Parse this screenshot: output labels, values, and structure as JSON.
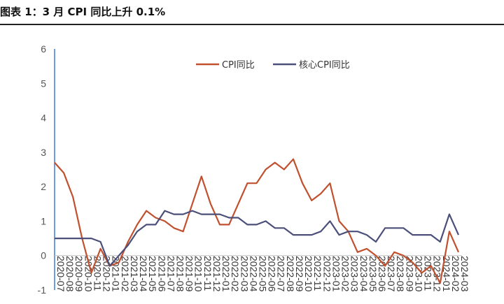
{
  "header": {
    "title": "图表 1：3 月 CPI 同比上升 0.1%"
  },
  "colors": {
    "cpi": "#c1502e",
    "core": "#4b4f79",
    "axis": "#3a7fd5"
  },
  "chart_data": {
    "type": "line",
    "title": "图表 1：3 月 CPI 同比上升 0.1%",
    "xlabel": "",
    "ylabel": "",
    "ylim": [
      -1,
      6
    ],
    "yticks": [
      -1,
      0,
      1,
      2,
      3,
      4,
      5,
      6
    ],
    "grid": false,
    "legend_position": "top-right",
    "x": [
      "2020-07",
      "2020-08",
      "2020-09",
      "2020-10",
      "2020-11",
      "2020-12",
      "2021-01",
      "2021-02",
      "2021-03",
      "2021-04",
      "2021-05",
      "2021-06",
      "2021-07",
      "2021-08",
      "2021-09",
      "2021-10",
      "2021-11",
      "2021-12",
      "2022-01",
      "2022-02",
      "2022-03",
      "2022-04",
      "2022-05",
      "2022-06",
      "2022-07",
      "2022-08",
      "2022-09",
      "2022-10",
      "2022-11",
      "2022-12",
      "2023-01",
      "2023-02",
      "2023-03",
      "2023-04",
      "2023-05",
      "2023-06",
      "2023-07",
      "2023-08",
      "2023-09",
      "2023-10",
      "2023-11",
      "2023-12",
      "2024-01",
      "2024-02",
      "2024-03"
    ],
    "series": [
      {
        "name": "CPI同比",
        "color": "#c1502e",
        "values": [
          2.7,
          2.4,
          1.7,
          0.5,
          -0.5,
          0.2,
          -0.3,
          -0.2,
          0.4,
          0.9,
          1.3,
          1.1,
          1.0,
          0.8,
          0.7,
          1.5,
          2.3,
          1.5,
          0.9,
          0.9,
          1.5,
          2.1,
          2.1,
          2.5,
          2.7,
          2.5,
          2.8,
          2.1,
          1.6,
          1.8,
          2.1,
          1.0,
          0.7,
          0.1,
          0.2,
          0.0,
          -0.3,
          0.1,
          0.0,
          -0.2,
          -0.5,
          -0.3,
          -0.8,
          0.7,
          0.1
        ]
      },
      {
        "name": "核心CPI同比",
        "color": "#4b4f79",
        "values": [
          0.5,
          0.5,
          0.5,
          0.5,
          0.5,
          0.4,
          -0.3,
          0.0,
          0.3,
          0.7,
          0.9,
          0.9,
          1.3,
          1.2,
          1.2,
          1.3,
          1.2,
          1.2,
          1.2,
          1.1,
          1.1,
          0.9,
          0.9,
          1.0,
          0.8,
          0.8,
          0.6,
          0.6,
          0.6,
          0.7,
          1.0,
          0.6,
          0.7,
          0.7,
          0.6,
          0.4,
          0.8,
          0.8,
          0.8,
          0.6,
          0.6,
          0.6,
          0.4,
          1.2,
          0.6
        ]
      }
    ]
  }
}
